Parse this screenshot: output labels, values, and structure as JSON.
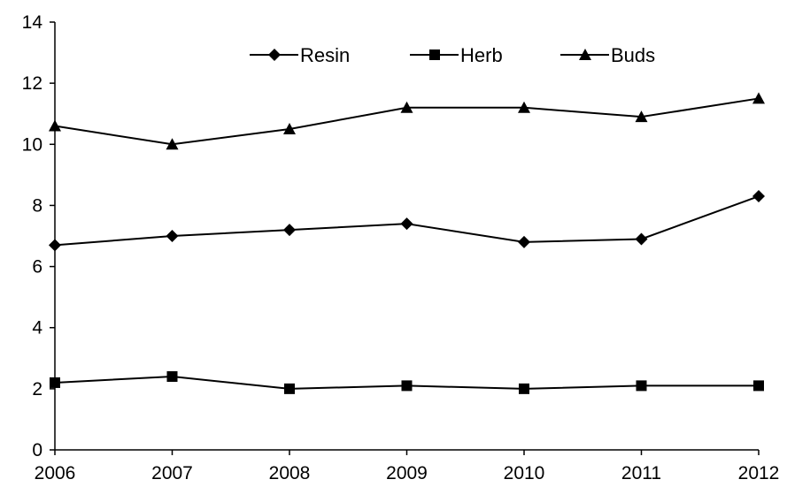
{
  "chart_data": {
    "type": "line",
    "title": "",
    "xlabel": "",
    "ylabel": "",
    "x": [
      2006,
      2007,
      2008,
      2009,
      2010,
      2011,
      2012
    ],
    "ylim": [
      0,
      14
    ],
    "y_ticks": [
      0,
      2,
      4,
      6,
      8,
      10,
      12,
      14
    ],
    "grid": false,
    "legend_position": "top",
    "series": [
      {
        "name": "Resin",
        "marker": "diamond",
        "color": "#000000",
        "values": [
          6.7,
          7.0,
          7.2,
          7.4,
          6.8,
          6.9,
          8.3
        ]
      },
      {
        "name": "Herb",
        "marker": "square",
        "color": "#000000",
        "values": [
          2.2,
          2.4,
          2.0,
          2.1,
          2.0,
          2.1,
          2.1
        ]
      },
      {
        "name": "Buds",
        "marker": "triangle",
        "color": "#000000",
        "values": [
          10.6,
          10.0,
          10.5,
          11.2,
          11.2,
          10.9,
          11.5
        ]
      }
    ]
  }
}
